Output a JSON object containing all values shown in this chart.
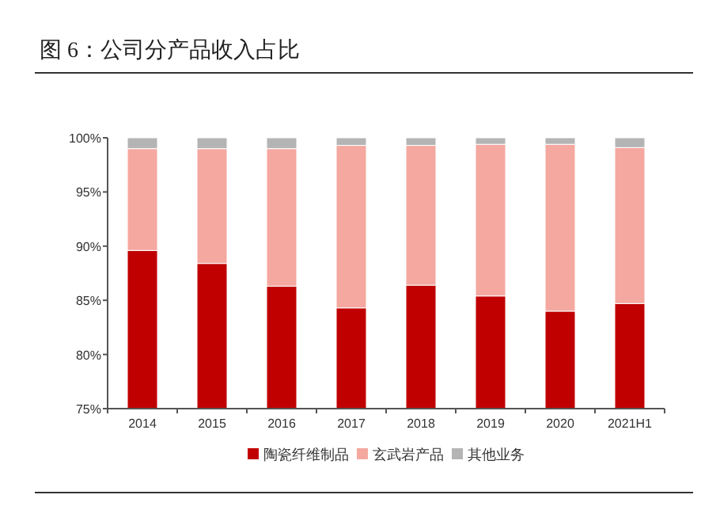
{
  "chart_data": {
    "type": "bar",
    "stacked": true,
    "title": "图 6：公司分产品收入占比",
    "categories": [
      "2014",
      "2015",
      "2016",
      "2017",
      "2018",
      "2019",
      "2020",
      "2021H1"
    ],
    "series": [
      {
        "name": "陶瓷纤维制品",
        "color": "#c00000",
        "values": [
          89.6,
          88.4,
          86.3,
          84.3,
          86.4,
          85.4,
          84.0,
          84.7
        ]
      },
      {
        "name": "玄武岩产品",
        "color": "#f4a8a0",
        "base": [
          89.6,
          88.4,
          86.3,
          84.3,
          86.4,
          85.4,
          84.0,
          84.7
        ],
        "values": [
          9.4,
          10.6,
          12.7,
          15.0,
          12.9,
          14.0,
          15.4,
          14.4
        ]
      },
      {
        "name": "其他业务",
        "color": "#b4b4b4",
        "base": [
          99.0,
          99.0,
          99.0,
          99.3,
          99.3,
          99.4,
          99.4,
          99.1
        ],
        "values": [
          1.0,
          1.0,
          1.0,
          0.7,
          0.7,
          0.6,
          0.6,
          0.9
        ]
      }
    ],
    "ylim": [
      75,
      100
    ],
    "yticks": [
      {
        "value": 75,
        "label": "75%"
      },
      {
        "value": 80,
        "label": "80%"
      },
      {
        "value": 85,
        "label": "85%"
      },
      {
        "value": 90,
        "label": "90%"
      },
      {
        "value": 95,
        "label": "95%"
      },
      {
        "value": 100,
        "label": "100%"
      }
    ],
    "legend": "bottom",
    "grid": false
  }
}
